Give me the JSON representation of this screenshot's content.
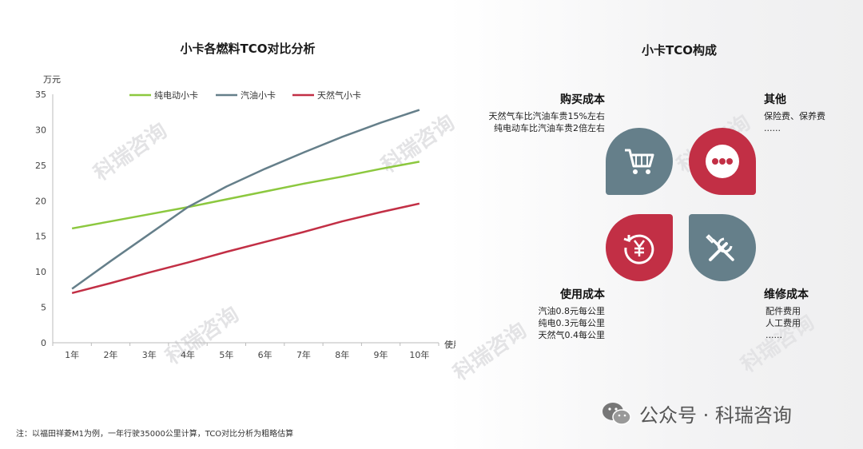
{
  "chart_data": {
    "type": "line",
    "title": "小卡各燃料TCO对比分析",
    "ylabel": "万元",
    "xlabel": "使用年限",
    "categories": [
      "1年",
      "2年",
      "3年",
      "4年",
      "5年",
      "6年",
      "7年",
      "8年",
      "9年",
      "10年"
    ],
    "ylim": [
      0,
      35
    ],
    "yticks": [
      0,
      5,
      10,
      15,
      20,
      25,
      30,
      35
    ],
    "legend_position": "top",
    "series": [
      {
        "name": "纯电动小卡",
        "color": "#8cc83f",
        "values": [
          16.1,
          17.1,
          18.1,
          19.1,
          20.2,
          21.3,
          22.4,
          23.4,
          24.5,
          25.5
        ]
      },
      {
        "name": "汽油小卡",
        "color": "#657f8a",
        "values": [
          7.6,
          11.5,
          15.3,
          19.1,
          22.0,
          24.5,
          26.8,
          29.0,
          31.0,
          32.8
        ]
      },
      {
        "name": "天然气小卡",
        "color": "#c22f45",
        "values": [
          7.0,
          8.4,
          9.9,
          11.3,
          12.8,
          14.2,
          15.6,
          17.1,
          18.4,
          19.6
        ]
      }
    ]
  },
  "tco": {
    "title": "小卡TCO构成",
    "purchase": {
      "title": "购买成本",
      "lines": [
        "天然气车比汽油车贵15%左右",
        "纯电动车比汽油车贵2倍左右"
      ],
      "icon": "cart-icon"
    },
    "other": {
      "title": "其他",
      "lines": [
        "保险费、保养费",
        "......"
      ],
      "icon": "more-dots-icon"
    },
    "usage": {
      "title": "使用成本",
      "lines": [
        "汽油0.8元每公里",
        "纯电0.3元每公里",
        "天然气0.4每公里"
      ],
      "icon": "yuan-cycle-icon"
    },
    "maintenance": {
      "title": "维修成本",
      "lines": [
        "配件费用",
        "人工费用",
        "......"
      ],
      "icon": "wrench-screwdriver-icon"
    }
  },
  "colors": {
    "teal": "#657f8a",
    "red": "#c22f45",
    "green": "#8cc83f"
  },
  "footer": {
    "note": "注：以福田祥菱M1为例，一年行驶35000公里计算，TCO对比分析为粗略估算",
    "account": "公众号 · 科瑞咨询"
  },
  "watermark": "科瑞咨询"
}
